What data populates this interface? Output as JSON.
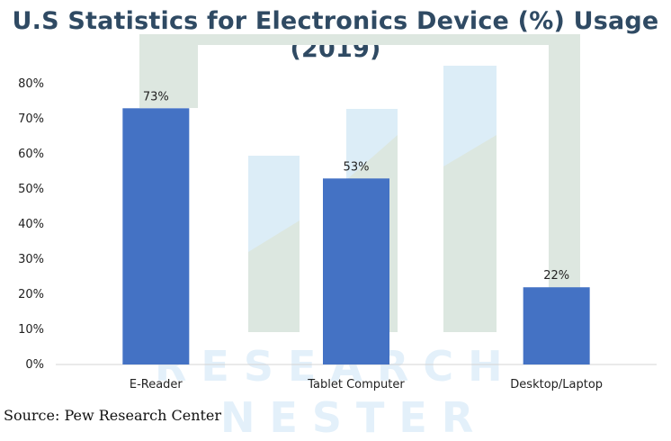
{
  "colors": {
    "bar": "#4472c4",
    "title": "#2f4a63",
    "watermark": "#e3f0fa"
  },
  "watermark": {
    "line1": "RESEARCH",
    "line2": "NESTER"
  },
  "source": "Source: Pew Research Center",
  "chart_data": {
    "type": "bar",
    "title": "U.S Statistics for Electronics Device (%) Usage (2019)",
    "categories": [
      "E-Reader",
      "Tablet Computer",
      "Desktop/Laptop"
    ],
    "values": [
      73,
      53,
      22
    ],
    "data_labels": [
      "73%",
      "53%",
      "22%"
    ],
    "yticks": [
      0,
      10,
      20,
      30,
      40,
      50,
      60,
      70,
      80
    ],
    "ytick_labels": [
      "0%",
      "10%",
      "20%",
      "30%",
      "40%",
      "50%",
      "60%",
      "70%",
      "80%"
    ],
    "ylim": [
      0,
      80
    ],
    "xlabel": "",
    "ylabel": "",
    "grid": false,
    "legend": "none"
  }
}
